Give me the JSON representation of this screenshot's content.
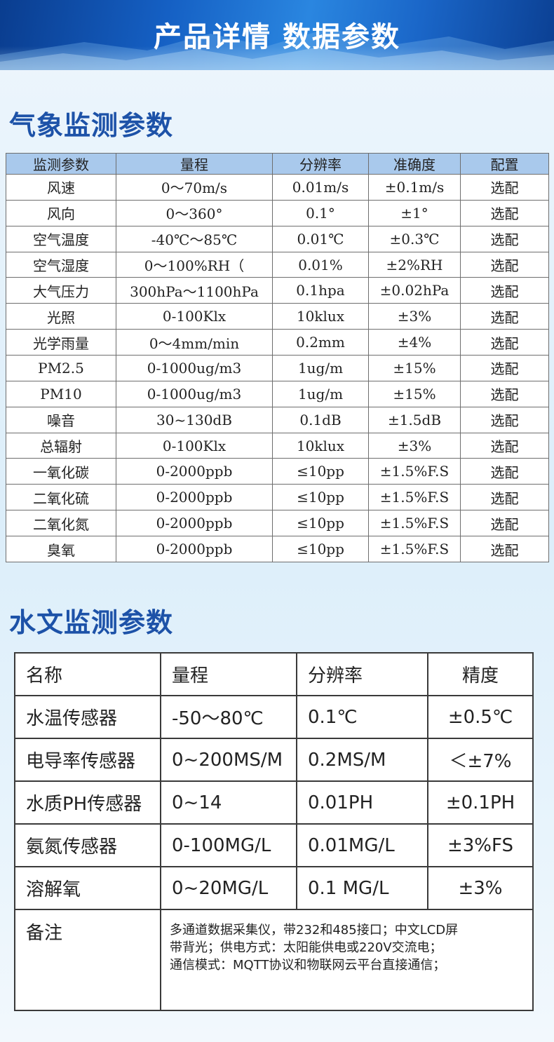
{
  "banner": {
    "title": "产品详情 数据参数"
  },
  "meteo": {
    "title": "气象监测参数",
    "headers": [
      "监测参数",
      "量程",
      "分辨率",
      "准确度",
      "配置"
    ],
    "rows": [
      [
        "风速",
        "0～70m/s",
        "0.01m/s",
        "±0.1m/s",
        "选配"
      ],
      [
        "风向",
        "0～360°",
        "0.1°",
        "±1°",
        "选配"
      ],
      [
        "空气温度",
        "-40℃～85℃",
        "0.01℃",
        "±0.3℃",
        "选配"
      ],
      [
        "空气湿度",
        "0～100%RH（",
        "0.01%",
        "±2%RH",
        "选配"
      ],
      [
        "大气压力",
        "300hPa～1100hPa",
        "0.1hpa",
        "±0.02hPa",
        "选配"
      ],
      [
        "光照",
        "0-100Klx",
        "10klux",
        "±3%",
        "选配"
      ],
      [
        "光学雨量",
        "0～4mm/min",
        "0.2mm",
        "±4%",
        "选配"
      ],
      [
        "PM2.5",
        "0-1000ug/m3",
        "1ug/m",
        "±15%",
        "选配"
      ],
      [
        "PM10",
        "0-1000ug/m3",
        "1ug/m",
        "±15%",
        "选配"
      ],
      [
        "噪音",
        "30~130dB",
        "0.1dB",
        "±1.5dB",
        "选配"
      ],
      [
        "总辐射",
        "0-100Klx",
        "10klux",
        "±3%",
        "选配"
      ],
      [
        "一氧化碳",
        "0-2000ppb",
        "≤10pp",
        "±1.5%F.S",
        "选配"
      ],
      [
        "二氧化硫",
        "0-2000ppb",
        "≤10pp",
        "±1.5%F.S",
        "选配"
      ],
      [
        "二氧化氮",
        "0-2000ppb",
        "≤10pp",
        "±1.5%F.S",
        "选配"
      ],
      [
        "臭氧",
        "0-2000ppb",
        "≤10pp",
        "±1.5%F.S",
        "选配"
      ]
    ]
  },
  "hydro": {
    "title": "水文监测参数",
    "headers": [
      "名称",
      "量程",
      "分辨率",
      "精度"
    ],
    "rows": [
      [
        "水温传感器",
        "-50～80℃",
        "0.1℃",
        "±0.5℃"
      ],
      [
        "电导率传感器",
        "0~200MS/M",
        "0.2MS/M",
        "＜±7%"
      ],
      [
        "水质PH传感器",
        "0~14",
        "0.01PH",
        "±0.1PH"
      ],
      [
        "氨氮传感器",
        "0-100MG/L",
        "0.01MG/L",
        "±3%FS"
      ],
      [
        "溶解氧",
        "0~20MG/L",
        "0.1 MG/L",
        "±3%"
      ]
    ],
    "note_label": "备注",
    "note_lines": [
      "多通道数据采集仪，带232和485接口；中文LCD屏",
      "带背光；供电方式：太阳能供电或220V交流电；",
      "通信模式：MQTT协议和物联网云平台直接通信；"
    ]
  }
}
